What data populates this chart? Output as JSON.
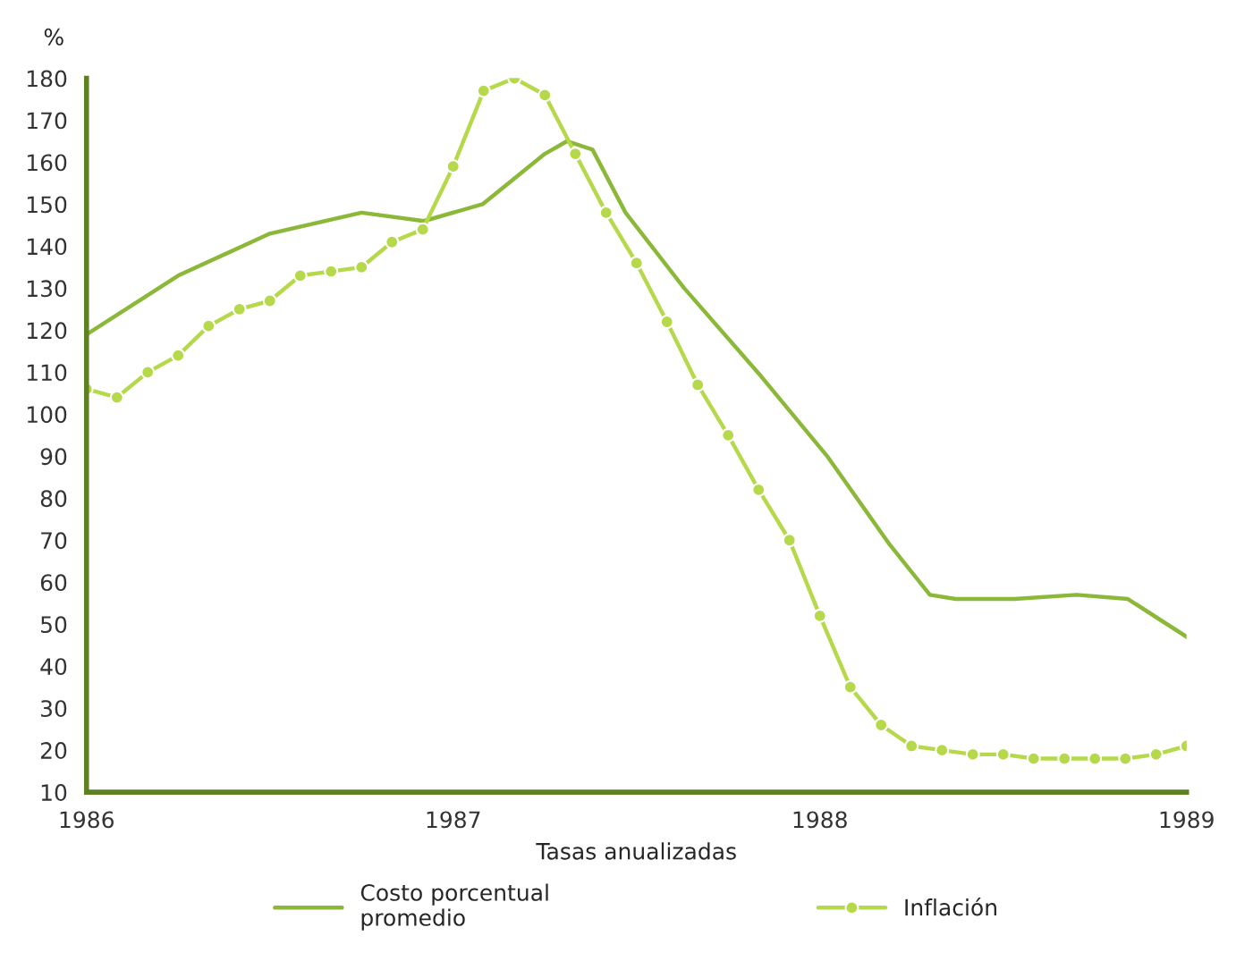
{
  "chart_data": {
    "type": "line",
    "ylabel": "%",
    "xlabel": "Tasas anualizadas",
    "xlim": [
      1986,
      1989
    ],
    "xticks": [
      1986,
      1987,
      1988,
      1989
    ],
    "ylim": [
      10,
      180
    ],
    "yticks": [
      10,
      20,
      30,
      40,
      50,
      60,
      70,
      80,
      90,
      100,
      110,
      120,
      130,
      140,
      150,
      160,
      170,
      180
    ],
    "legend": "bottom",
    "grid": false,
    "series": [
      {
        "name": "Costo porcentual\npromedio",
        "color": "#8cb83a",
        "marker": "none",
        "x": [
          1986.0,
          1986.25,
          1986.5,
          1986.75,
          1986.92,
          1987.08,
          1987.25,
          1987.31,
          1987.38,
          1987.47,
          1987.63,
          1987.84,
          1988.02,
          1988.19,
          1988.3,
          1988.37,
          1988.53,
          1988.7,
          1988.84,
          1989.0
        ],
        "values": [
          119,
          133,
          143,
          148,
          146,
          150,
          162,
          165,
          163,
          148,
          130,
          109,
          90,
          69,
          57,
          56,
          56,
          57,
          56,
          47
        ]
      },
      {
        "name": "Inflación",
        "color": "#b5d94a",
        "marker": "circle",
        "x": [
          1986.0,
          1986.083,
          1986.167,
          1986.25,
          1986.333,
          1986.417,
          1986.5,
          1986.583,
          1986.667,
          1986.75,
          1986.833,
          1986.917,
          1987.0,
          1987.083,
          1987.167,
          1987.25,
          1987.333,
          1987.417,
          1987.5,
          1987.583,
          1987.667,
          1987.75,
          1987.833,
          1987.917,
          1988.0,
          1988.083,
          1988.167,
          1988.25,
          1988.333,
          1988.417,
          1988.5,
          1988.583,
          1988.667,
          1988.75,
          1988.833,
          1988.917,
          1989.0
        ],
        "values": [
          106,
          104,
          110,
          114,
          121,
          125,
          127,
          133,
          134,
          135,
          141,
          144,
          159,
          177,
          180,
          176,
          162,
          148,
          136,
          122,
          107,
          95,
          82,
          70,
          52,
          35,
          26,
          21,
          20,
          19,
          19,
          18,
          18,
          18,
          18,
          19,
          21
        ]
      }
    ]
  }
}
